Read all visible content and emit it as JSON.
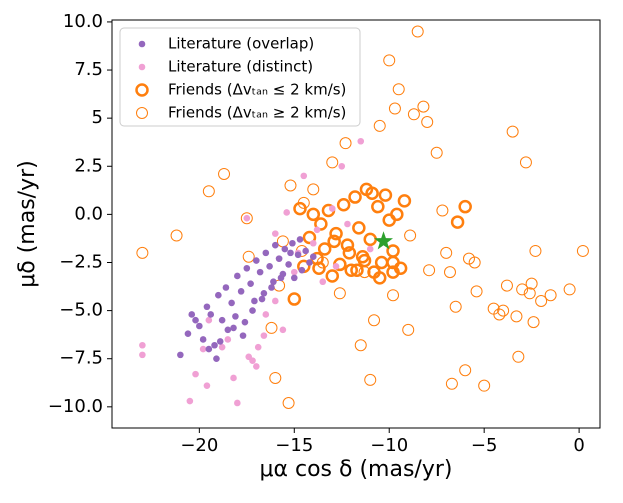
{
  "chart_data": {
    "type": "scatter",
    "xlabel": "μα cos δ (mas/yr)",
    "ylabel": "μδ (mas/yr)",
    "xlim": [
      -24.6,
      1.1
    ],
    "ylim": [
      -11.1,
      10.1
    ],
    "xticks": [
      {
        "value": -20,
        "label": "−20"
      },
      {
        "value": -15,
        "label": "−15"
      },
      {
        "value": -10,
        "label": "−10"
      },
      {
        "value": -5,
        "label": "−5"
      },
      0
    ],
    "yticks": [
      {
        "value": -10,
        "label": "−10.0"
      },
      {
        "value": -7.5,
        "label": "−7.5"
      },
      {
        "value": -5,
        "label": "−5.0"
      },
      {
        "value": -2.5,
        "label": "−2.5"
      },
      {
        "value": 0,
        "label": "0.0"
      },
      2.5,
      5,
      7.5,
      {
        "value": 10,
        "label": "10.0"
      }
    ],
    "grid": false,
    "legend": "upper left",
    "series": [
      {
        "name": "Friends (Δvₜₐₙ ≥ 2 km/s)",
        "color": "#ff7f0e",
        "marker": "ring",
        "linewidth": 1,
        "x": [
          -23,
          -21.2,
          -19.5,
          -18.7,
          -17.5,
          -16,
          -15.3,
          -15.2,
          -14.5,
          -14,
          -13,
          -12.3,
          -11.5,
          -11,
          -10.5,
          -10,
          -9.8,
          -9.5,
          -9,
          -8.5,
          -8.7,
          -8.2,
          -8,
          -7.5,
          -7.2,
          -7,
          -6.8,
          -6.5,
          -6,
          -5.5,
          -5,
          -4.5,
          -4.2,
          -3.5,
          -3.3,
          -3,
          -2.8,
          -2.5,
          -2.3,
          -2,
          -1.5,
          -0.5,
          0.2,
          -3.8,
          -3.2,
          -2.6,
          -5.8,
          -7.9,
          -10.8,
          -11.3,
          -9.7,
          -13.5,
          -15.8,
          -14.6,
          -16.2,
          -17.4,
          -15.6,
          -12.6,
          -8.9,
          -6.7,
          -5.4,
          -4,
          -2.4
        ],
        "y": [
          -2.0,
          -1.1,
          1.2,
          2.1,
          -0.2,
          -8.5,
          -9.8,
          1.5,
          0.6,
          1.3,
          2.7,
          3.7,
          -6.8,
          -8.6,
          4.6,
          8.0,
          -4.2,
          6.5,
          -6.0,
          9.5,
          5.2,
          5.6,
          4.8,
          3.2,
          0.2,
          -2.0,
          -3.0,
          -4.8,
          -8.1,
          -2.5,
          -8.9,
          -4.9,
          -5.2,
          4.3,
          -5.3,
          -3.9,
          2.7,
          -3.6,
          -1.9,
          -4.5,
          -4.2,
          -3.9,
          -1.9,
          -3.7,
          -7.4,
          -4.1,
          -2.3,
          -2.9,
          -5.5,
          -3.0,
          5.5,
          -2.5,
          -3.7,
          -1.9,
          -5.9,
          -2.2,
          -1.4,
          -4.1,
          -1.1,
          -8.8,
          -4.0,
          -5.0,
          -5.6
        ]
      },
      {
        "name": "Friends (Δvₜₐₙ ≤ 2 km/s)",
        "color": "#ff7f0e",
        "marker": "ring",
        "linewidth": 2.5,
        "x": [
          -15,
          -14.7,
          -14.5,
          -14.2,
          -14,
          -13.8,
          -13.6,
          -13.4,
          -13.2,
          -13,
          -12.8,
          -12.6,
          -12.4,
          -12.2,
          -12,
          -11.8,
          -11.6,
          -11.4,
          -11.2,
          -11,
          -10.8,
          -10.6,
          -10.4,
          -10.2,
          -10,
          -9.8,
          -9.6,
          -9.4,
          -9.2,
          -9.8,
          -10.5,
          -11.3,
          -12.1,
          -12.9,
          -13.7,
          -6.0,
          -6.4,
          -9.8,
          -10.9,
          -11.7
        ],
        "y": [
          -4.4,
          0.3,
          -2.7,
          -1.2,
          0.0,
          -2.3,
          -0.5,
          -1.8,
          0.2,
          -3.2,
          -1.0,
          -2.6,
          0.5,
          -1.6,
          -2.9,
          0.9,
          -0.7,
          -2.2,
          1.3,
          -1.3,
          -3.0,
          0.4,
          -2.5,
          1.0,
          -0.3,
          -1.9,
          0.0,
          -2.8,
          0.7,
          -3.0,
          -3.3,
          -2.4,
          -2.0,
          -1.4,
          -2.8,
          0.4,
          -0.4,
          -2.5,
          1.1,
          -2.9
        ]
      },
      {
        "name": "Literature (distinct)",
        "color": "#f0a0d4",
        "marker": "dot",
        "x": [
          -23,
          -23,
          -20.5,
          -20.2,
          -19.8,
          -19.6,
          -18.8,
          -18,
          -17.2,
          -17,
          -16.6,
          -16,
          -15.6,
          -17.5,
          -16,
          -15.4,
          -14.5,
          -13,
          -11.5,
          -12.5,
          -14,
          -13.5,
          -19.5,
          -18.5,
          -16.5,
          -15,
          -14.8,
          -12.2,
          -11,
          -18.2,
          -17.4,
          -16.9,
          -13.8,
          -12.8,
          -15.8
        ],
        "y": [
          -6.8,
          -7.3,
          -9.7,
          -8.3,
          -7.0,
          -8.9,
          -6.9,
          -9.8,
          -7.6,
          -7.9,
          -6.3,
          -4.5,
          -6.0,
          -0.2,
          -1.0,
          0.1,
          2.0,
          0.3,
          3.8,
          2.5,
          -1.5,
          -3.5,
          -5.5,
          -6.5,
          -5.2,
          -3.0,
          -2.0,
          -0.5,
          -1.8,
          -8.5,
          -7.4,
          -6.9,
          -0.8,
          -2.7,
          -2.3
        ]
      },
      {
        "name": "Literature (overlap)",
        "color": "#9467bd",
        "marker": "dot",
        "x": [
          -21,
          -20.6,
          -20.2,
          -20,
          -19.8,
          -19.6,
          -19.4,
          -19.2,
          -19,
          -18.8,
          -18.6,
          -18.5,
          -18.3,
          -18.1,
          -18,
          -17.8,
          -17.6,
          -17.5,
          -17.3,
          -17.1,
          -17,
          -16.8,
          -16.6,
          -16.5,
          -16.3,
          -16.1,
          -16,
          -15.8,
          -15.6,
          -15.5,
          -15.3,
          -15.1,
          -15,
          -14.8,
          -14.6,
          -14.4,
          -14.2,
          -14,
          -19.5,
          -18.9,
          -18.2,
          -17.7,
          -17.2,
          -16.7,
          -16.2,
          -15.7,
          -15.2,
          -14.7,
          -20.4,
          -19.1
        ],
        "y": [
          -7.3,
          -6.2,
          -5.5,
          -5.8,
          -6.5,
          -4.8,
          -5.2,
          -6.8,
          -4.2,
          -5.5,
          -3.8,
          -6.0,
          -4.6,
          -5.3,
          -3.2,
          -4.0,
          -5.6,
          -2.8,
          -3.6,
          -4.5,
          -2.4,
          -3.0,
          -4.1,
          -2.0,
          -2.7,
          -3.5,
          -1.6,
          -2.3,
          -3.1,
          -1.8,
          -2.6,
          -1.5,
          -3.3,
          -2.1,
          -2.9,
          -1.9,
          -2.5,
          -2.2,
          -7.0,
          -6.6,
          -5.9,
          -6.3,
          -5.0,
          -4.4,
          -3.8,
          -3.3,
          -2.0,
          -1.3,
          -5.2,
          -7.5
        ]
      }
    ],
    "star": {
      "x": -10.3,
      "y": -1.4,
      "color": "#2ca02c"
    }
  }
}
